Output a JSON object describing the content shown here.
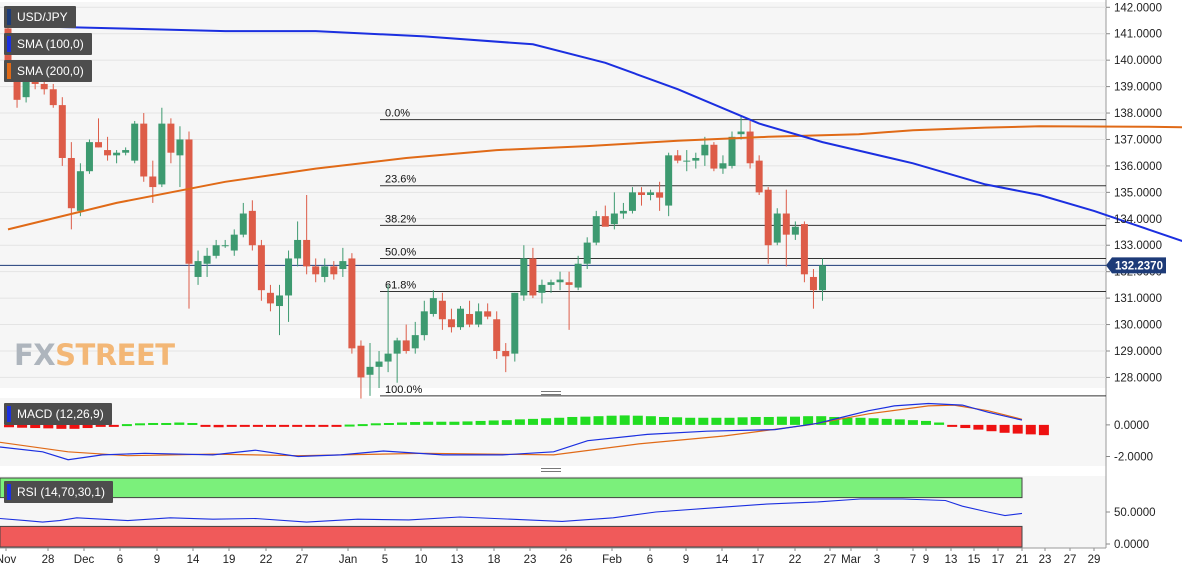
{
  "legend": {
    "symbol": "USD/JPY",
    "sma100": "SMA (100,0)",
    "sma200": "SMA (200,0)",
    "macd": "MACD (12,26,9)",
    "rsi": "RSI (14,70,30,1)"
  },
  "watermark": {
    "part1": "FX",
    "part2": "STREET"
  },
  "colors": {
    "up": "#3d9a70",
    "down": "#dd5c48",
    "sma100": "#1b2fe0",
    "sma200": "#e06a17",
    "macd_line": "#1b2fe0",
    "signal_line": "#e06a17",
    "hist_up": "#22dd22",
    "hist_down": "#ee1111",
    "rsi_line": "#1b2fe0",
    "overbought": "#7bf07b",
    "oversold": "#f05a5a",
    "price_tag": "#1d3b78",
    "fib": "#333333",
    "background": "#f6f6f6"
  },
  "chart_data": [
    {
      "type": "candlestick",
      "title": "USD/JPY",
      "y_ticks": [
        "142.0000",
        "141.0000",
        "140.0000",
        "139.0000",
        "138.0000",
        "137.0000",
        "136.0000",
        "135.0000",
        "134.0000",
        "133.0000",
        "132.0000",
        "131.0000",
        "130.0000",
        "129.0000",
        "128.0000"
      ],
      "ylim": [
        127.6,
        142.2
      ],
      "last_price": 132.237,
      "last_price_label": "132.2370",
      "x_labels": [
        "Nov",
        "28",
        "Dec",
        "6",
        "9",
        "14",
        "19",
        "22",
        "27",
        "Jan",
        "5",
        "10",
        "13",
        "18",
        "23",
        "26",
        "Feb",
        "6",
        "9",
        "14",
        "17",
        "22",
        "27",
        "Mar",
        "3",
        "7",
        "9",
        "13",
        "15",
        "17",
        "21",
        "23",
        "27",
        "29"
      ],
      "candles": [
        [
          141.2,
          141.3,
          139.2,
          139.4
        ],
        [
          139.4,
          140.0,
          138.2,
          138.5
        ],
        [
          138.6,
          139.4,
          138.4,
          139.2
        ],
        [
          139.2,
          139.4,
          138.9,
          139.1
        ],
        [
          139.1,
          139.3,
          138.7,
          138.9
        ],
        [
          138.9,
          139.1,
          138.2,
          138.3
        ],
        [
          138.3,
          138.6,
          136.0,
          136.3
        ],
        [
          136.3,
          136.9,
          133.6,
          134.4
        ],
        [
          134.3,
          136.1,
          134.1,
          135.8
        ],
        [
          135.8,
          137.0,
          135.7,
          136.9
        ],
        [
          136.9,
          137.8,
          136.7,
          136.7
        ],
        [
          136.6,
          137.1,
          136.2,
          136.4
        ],
        [
          136.4,
          136.6,
          136.1,
          136.5
        ],
        [
          136.5,
          136.7,
          136.4,
          136.6
        ],
        [
          136.2,
          137.7,
          136.1,
          137.6
        ],
        [
          137.6,
          138.0,
          135.4,
          135.6
        ],
        [
          135.6,
          136.2,
          134.6,
          135.2
        ],
        [
          135.3,
          138.2,
          135.2,
          137.6
        ],
        [
          137.6,
          137.8,
          136.1,
          136.5
        ],
        [
          136.4,
          137.5,
          135.2,
          137.0
        ],
        [
          137.0,
          137.3,
          130.6,
          132.3
        ],
        [
          131.8,
          132.8,
          131.5,
          132.4
        ],
        [
          132.3,
          132.9,
          131.8,
          132.6
        ],
        [
          132.6,
          133.2,
          132.5,
          133.0
        ],
        [
          133.0,
          133.2,
          132.9,
          133.0
        ],
        [
          132.8,
          133.6,
          132.6,
          133.4
        ],
        [
          133.4,
          134.6,
          133.3,
          134.2
        ],
        [
          134.3,
          134.7,
          132.8,
          133.0
        ],
        [
          133.0,
          133.2,
          130.9,
          131.3
        ],
        [
          131.2,
          131.5,
          130.5,
          130.8
        ],
        [
          130.7,
          131.5,
          129.6,
          131.1
        ],
        [
          131.1,
          132.8,
          130.1,
          132.5
        ],
        [
          132.5,
          133.9,
          132.2,
          133.2
        ],
        [
          133.2,
          134.9,
          131.9,
          132.2
        ],
        [
          132.2,
          132.5,
          131.6,
          131.9
        ],
        [
          131.8,
          132.5,
          131.6,
          132.2
        ],
        [
          132.2,
          132.4,
          131.7,
          131.9
        ],
        [
          132.1,
          132.9,
          131.8,
          132.4
        ],
        [
          132.5,
          132.7,
          128.9,
          129.1
        ],
        [
          129.2,
          129.4,
          127.2,
          128.0
        ],
        [
          128.1,
          129.3,
          127.3,
          128.4
        ],
        [
          128.4,
          129.0,
          127.6,
          128.6
        ],
        [
          128.6,
          131.5,
          128.2,
          128.9
        ],
        [
          128.9,
          129.5,
          127.8,
          129.4
        ],
        [
          129.4,
          130.0,
          128.9,
          129.0
        ],
        [
          129.1,
          130.1,
          128.9,
          129.6
        ],
        [
          129.6,
          130.9,
          129.4,
          130.5
        ],
        [
          130.4,
          131.3,
          130.3,
          131.0
        ],
        [
          130.9,
          131.2,
          129.8,
          130.2
        ],
        [
          130.2,
          130.6,
          129.7,
          129.9
        ],
        [
          129.9,
          130.7,
          129.8,
          130.6
        ],
        [
          130.4,
          130.9,
          129.9,
          130.0
        ],
        [
          130.0,
          130.8,
          129.9,
          130.5
        ],
        [
          130.5,
          130.8,
          130.2,
          130.3
        ],
        [
          130.2,
          130.5,
          128.7,
          129.0
        ],
        [
          129.0,
          129.3,
          128.2,
          128.8
        ],
        [
          128.9,
          131.2,
          128.6,
          131.2
        ],
        [
          131.1,
          133.0,
          130.9,
          132.5
        ],
        [
          132.5,
          132.9,
          131.0,
          131.1
        ],
        [
          131.2,
          131.7,
          130.8,
          131.5
        ],
        [
          131.5,
          131.7,
          131.2,
          131.6
        ],
        [
          131.6,
          132.0,
          131.3,
          131.7
        ],
        [
          131.6,
          132.0,
          129.8,
          131.5
        ],
        [
          131.4,
          132.6,
          131.3,
          132.3
        ],
        [
          132.3,
          133.3,
          132.1,
          133.1
        ],
        [
          133.1,
          134.3,
          133.0,
          134.1
        ],
        [
          134.1,
          134.5,
          133.8,
          133.7
        ],
        [
          133.8,
          135.0,
          133.6,
          134.2
        ],
        [
          134.2,
          134.6,
          134.0,
          134.3
        ],
        [
          134.3,
          135.2,
          134.2,
          135.0
        ],
        [
          135.0,
          135.2,
          134.5,
          134.9
        ],
        [
          134.9,
          135.1,
          134.7,
          135.0
        ],
        [
          135.0,
          135.4,
          134.3,
          134.8
        ],
        [
          134.5,
          136.5,
          134.1,
          136.4
        ],
        [
          136.4,
          136.6,
          136.1,
          136.2
        ],
        [
          136.2,
          136.6,
          135.8,
          136.2
        ],
        [
          136.2,
          136.5,
          135.9,
          136.3
        ],
        [
          136.4,
          137.1,
          136.0,
          136.8
        ],
        [
          136.8,
          136.9,
          135.8,
          135.9
        ],
        [
          135.9,
          136.4,
          135.7,
          136.1
        ],
        [
          136.0,
          137.3,
          135.9,
          137.1
        ],
        [
          137.2,
          137.9,
          137.0,
          137.3
        ],
        [
          137.3,
          137.7,
          135.9,
          136.1
        ],
        [
          136.2,
          136.4,
          134.9,
          135.0
        ],
        [
          135.1,
          135.2,
          132.3,
          133.0
        ],
        [
          133.1,
          134.4,
          133.0,
          134.2
        ],
        [
          134.2,
          135.1,
          132.2,
          133.4
        ],
        [
          133.4,
          133.9,
          133.2,
          133.7
        ],
        [
          133.8,
          133.9,
          131.6,
          131.9
        ],
        [
          131.8,
          132.1,
          130.6,
          131.3
        ],
        [
          131.3,
          132.5,
          130.9,
          132.24
        ]
      ],
      "sma100": [
        [
          0,
          141.3
        ],
        [
          12,
          141.2
        ],
        [
          24,
          141.1
        ],
        [
          34,
          141.1
        ],
        [
          46,
          140.9
        ],
        [
          58,
          140.6
        ],
        [
          66,
          139.9
        ],
        [
          74,
          138.9
        ],
        [
          83,
          137.6
        ],
        [
          90,
          136.9
        ],
        [
          100,
          136.1
        ],
        [
          108,
          135.3
        ],
        [
          114,
          134.9
        ],
        [
          120,
          134.3
        ],
        [
          126,
          133.6
        ],
        [
          132,
          132.9
        ]
      ],
      "sma200": [
        [
          0,
          133.6
        ],
        [
          12,
          134.6
        ],
        [
          24,
          135.4
        ],
        [
          34,
          135.9
        ],
        [
          44,
          136.3
        ],
        [
          54,
          136.6
        ],
        [
          64,
          136.75
        ],
        [
          74,
          136.95
        ],
        [
          84,
          137.1
        ],
        [
          94,
          137.2
        ],
        [
          100,
          137.35
        ],
        [
          108,
          137.45
        ],
        [
          114,
          137.5
        ],
        [
          126,
          137.48
        ],
        [
          132,
          137.45
        ]
      ],
      "fibonacci": [
        {
          "label": "0.0%",
          "value": 137.75
        },
        {
          "label": "23.6%",
          "value": 135.25
        },
        {
          "label": "38.2%",
          "value": 133.75
        },
        {
          "label": "50.0%",
          "value": 132.5
        },
        {
          "label": "61.8%",
          "value": 131.25
        },
        {
          "label": "100.0%",
          "value": 127.3
        }
      ]
    },
    {
      "type": "line",
      "title": "MACD (12,26,9)",
      "y_ticks": [
        "0.0000",
        "-2.0000"
      ],
      "ylim": [
        -2.6,
        1.7
      ],
      "histogram": [
        -0.15,
        -0.18,
        -0.2,
        -0.22,
        -0.25,
        -0.25,
        -0.2,
        -0.12,
        -0.05,
        0.05,
        0.1,
        0.12,
        0.12,
        0.15,
        0.12,
        -0.1,
        -0.15,
        -0.1,
        -0.12,
        -0.12,
        -0.1,
        -0.12,
        -0.12,
        -0.08,
        -0.05,
        -0.05,
        0.02,
        0.05,
        0.1,
        0.12,
        0.15,
        0.18,
        0.2,
        0.2,
        0.2,
        0.22,
        0.25,
        0.28,
        0.3,
        0.35,
        0.38,
        0.42,
        0.45,
        0.5,
        0.52,
        0.55,
        0.58,
        0.6,
        0.58,
        0.55,
        0.5,
        0.48,
        0.45,
        0.45,
        0.45,
        0.45,
        0.48,
        0.5,
        0.5,
        0.52,
        0.52,
        0.55,
        0.55,
        0.5,
        0.45,
        0.45,
        0.42,
        0.38,
        0.35,
        0.3,
        0.25,
        0.15,
        -0.1,
        -0.2,
        -0.3,
        -0.4,
        -0.5,
        -0.55,
        -0.6,
        -0.65
      ],
      "macd_line": [
        [
          0,
          -1.4
        ],
        [
          10,
          -1.7
        ],
        [
          16,
          -2.2
        ],
        [
          24,
          -1.9
        ],
        [
          34,
          -1.8
        ],
        [
          50,
          -1.9
        ],
        [
          60,
          -1.6
        ],
        [
          70,
          -2.0
        ],
        [
          80,
          -1.9
        ],
        [
          90,
          -1.65
        ],
        [
          104,
          -1.9
        ],
        [
          118,
          -1.9
        ],
        [
          130,
          -1.7
        ],
        [
          138,
          -1.0
        ],
        [
          152,
          -0.6
        ],
        [
          166,
          -0.4
        ],
        [
          182,
          -0.3
        ],
        [
          192,
          0.1
        ],
        [
          198,
          0.5
        ],
        [
          204,
          0.9
        ],
        [
          210,
          1.2
        ],
        [
          218,
          1.35
        ],
        [
          226,
          1.25
        ],
        [
          232,
          0.8
        ],
        [
          240,
          0.3
        ]
      ],
      "signal_line": [
        [
          0,
          -1.1
        ],
        [
          16,
          -1.7
        ],
        [
          30,
          -1.95
        ],
        [
          50,
          -1.85
        ],
        [
          70,
          -1.95
        ],
        [
          100,
          -1.8
        ],
        [
          130,
          -1.9
        ],
        [
          150,
          -1.2
        ],
        [
          170,
          -0.7
        ],
        [
          190,
          0.0
        ],
        [
          204,
          0.7
        ],
        [
          218,
          1.2
        ],
        [
          224,
          1.25
        ],
        [
          232,
          0.9
        ],
        [
          240,
          0.35
        ]
      ]
    },
    {
      "type": "line",
      "title": "RSI (14,70,30,1)",
      "y_ticks": [
        "50.0000",
        "0.0000"
      ],
      "ylim": [
        0,
        100
      ],
      "overbought": 70,
      "oversold": 30,
      "values": [
        [
          0,
          41
        ],
        [
          6,
          38
        ],
        [
          10,
          36
        ],
        [
          14,
          38
        ],
        [
          18,
          42
        ],
        [
          24,
          40
        ],
        [
          30,
          38
        ],
        [
          40,
          42
        ],
        [
          50,
          40
        ],
        [
          60,
          41
        ],
        [
          72,
          36
        ],
        [
          84,
          40
        ],
        [
          96,
          39
        ],
        [
          108,
          43
        ],
        [
          120,
          40
        ],
        [
          132,
          37
        ],
        [
          144,
          42
        ],
        [
          154,
          50
        ],
        [
          168,
          56
        ],
        [
          180,
          61
        ],
        [
          192,
          64
        ],
        [
          202,
          68
        ],
        [
          212,
          68
        ],
        [
          222,
          66
        ],
        [
          226,
          58
        ],
        [
          232,
          50
        ],
        [
          236,
          45
        ],
        [
          240,
          48
        ]
      ]
    }
  ]
}
